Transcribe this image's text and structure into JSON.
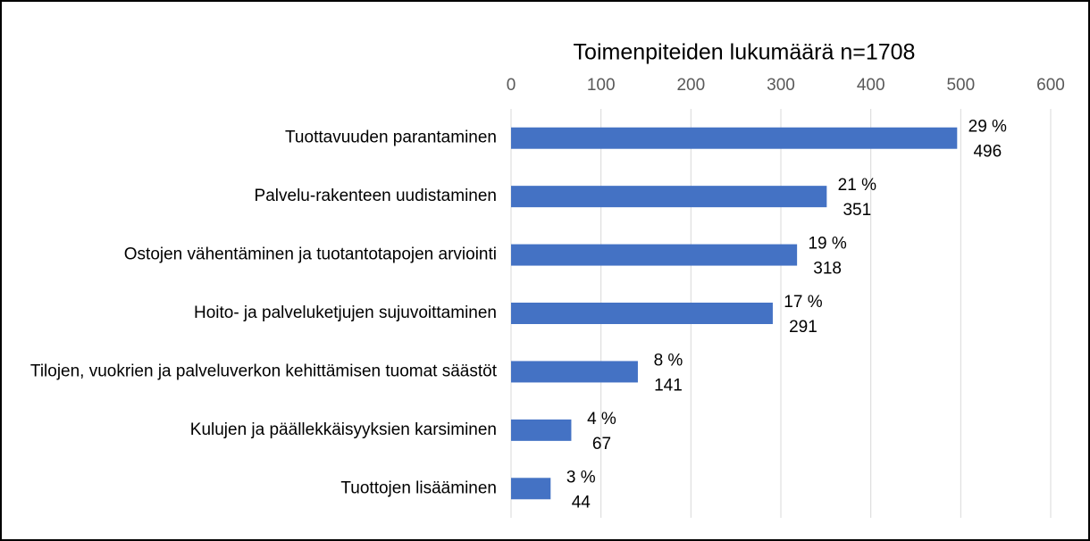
{
  "chart_data": {
    "type": "barh",
    "title": "Toimenpiteiden lukumäärä n=1708",
    "categories": [
      "Tuottavuuden parantaminen",
      "Palvelu-rakenteen uudistaminen",
      "Ostojen vähentäminen ja tuotantotapojen arviointi",
      "Hoito- ja palveluketjujen sujuvoittaminen",
      "Tilojen, vuokrien ja palveluverkon kehittämisen tuomat säästöt",
      "Kulujen ja päällekkäisyyksien karsiminen",
      "Tuottojen lisääminen"
    ],
    "values": [
      496,
      351,
      318,
      291,
      141,
      67,
      44
    ],
    "percent_labels": [
      "29 %",
      "21 %",
      "19 %",
      "17 %",
      "8 %",
      "4 %",
      "3 %"
    ],
    "color": "#4472c4",
    "xlim": [
      0,
      600
    ],
    "xticks": [
      0,
      100,
      200,
      300,
      400,
      500,
      600
    ],
    "grid": true
  }
}
